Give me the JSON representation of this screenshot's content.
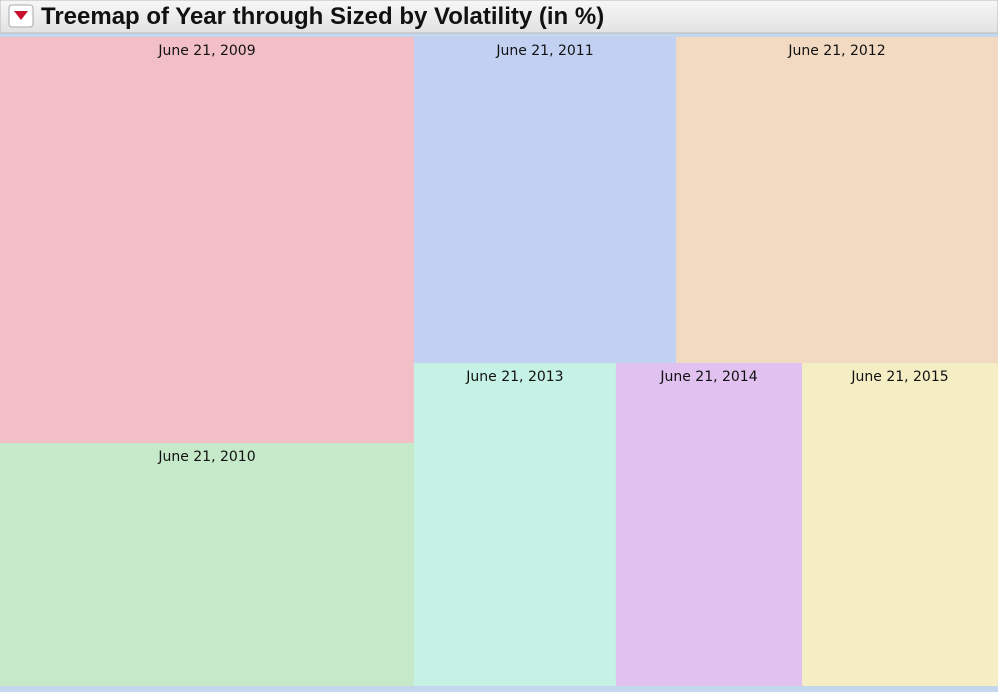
{
  "chart_data": {
    "type": "treemap",
    "title": "Treemap of Year through Sized by Volatility (in %)",
    "categories": [
      "June 21, 2009",
      "June 21, 2010",
      "June 21, 2011",
      "June 21, 2012",
      "June 21, 2013",
      "June 21, 2014",
      "June 21, 2015"
    ],
    "values": [
      25.95,
      15.53,
      13.19,
      16.21,
      10.07,
      9.28,
      9.77
    ],
    "colors": [
      "#f2bfc6",
      "#c6e9c9",
      "#c2d0f2",
      "#f2d9c1",
      "#c5f2e4",
      "#e0c1f0",
      "#f5eec5"
    ]
  }
}
